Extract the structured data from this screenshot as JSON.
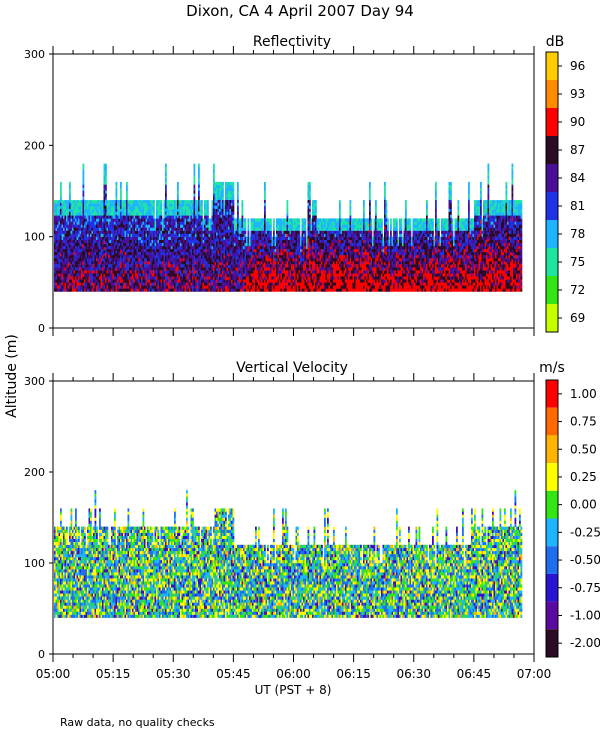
{
  "figure": {
    "title": "Dixon, CA   4 April 2007   Day   94",
    "y_label": "Altitude  (m)",
    "x_label": "UT   (PST + 8)",
    "footnote": "Raw data, no quality checks",
    "time_ticks": [
      "05:00",
      "05:15",
      "05:30",
      "05:45",
      "06:00",
      "06:15",
      "06:30",
      "06:45",
      "07:00"
    ]
  },
  "chart_data": [
    {
      "type": "heatmap",
      "title": "Reflectivity",
      "xlabel": "UT   (PST + 8)",
      "ylabel": "Altitude  (m)",
      "x_range_hours": [
        5.0,
        7.0
      ],
      "ylim": [
        0,
        300
      ],
      "y_ticks": [
        0,
        100,
        200,
        300
      ],
      "colorbar": {
        "unit": "dB",
        "labels": [
          "96",
          "93",
          "90",
          "87",
          "84",
          "81",
          "78",
          "75",
          "72",
          "69"
        ],
        "colors": [
          "#ffcc00",
          "#ff8c00",
          "#ff0000",
          "#2d0a24",
          "#4a0e98",
          "#1e32e6",
          "#1eb4ff",
          "#1ee6a0",
          "#32e614",
          "#c8ff00"
        ]
      },
      "echo": {
        "base_altitude_m": 40,
        "segments": [
          {
            "t_start": 5.0,
            "t_end": 5.667,
            "top_m": 140,
            "spike_top_m": 180
          },
          {
            "t_start": 5.667,
            "t_end": 5.75,
            "top_m": 160,
            "spike_top_m": 160
          },
          {
            "t_start": 5.75,
            "t_end": 6.75,
            "top_m": 120,
            "spike_top_m": 160
          },
          {
            "t_start": 6.75,
            "t_end": 6.95,
            "top_m": 140,
            "spike_top_m": 180
          }
        ]
      }
    },
    {
      "type": "heatmap",
      "title": "Vertical Velocity",
      "xlabel": "UT   (PST + 8)",
      "ylabel": "Altitude  (m)",
      "x_range_hours": [
        5.0,
        7.0
      ],
      "ylim": [
        0,
        300
      ],
      "y_ticks": [
        0,
        100,
        200,
        300
      ],
      "colorbar": {
        "unit": "m/s",
        "labels": [
          "1.00",
          "0.75",
          "0.50",
          "0.25",
          "0.00",
          "-0.25",
          "-0.50",
          "-0.75",
          "-1.00",
          "-2.00"
        ],
        "colors": [
          "#ff0000",
          "#ff6a00",
          "#ffb400",
          "#ffff00",
          "#32e614",
          "#1eb4ff",
          "#1e6ef0",
          "#2814d2",
          "#5a0aa0",
          "#2d0a24"
        ]
      },
      "echo": {
        "base_altitude_m": 40,
        "segments": [
          {
            "t_start": 5.0,
            "t_end": 5.667,
            "top_m": 140,
            "spike_top_m": 180
          },
          {
            "t_start": 5.667,
            "t_end": 5.75,
            "top_m": 160,
            "spike_top_m": 160
          },
          {
            "t_start": 5.75,
            "t_end": 6.75,
            "top_m": 120,
            "spike_top_m": 160
          },
          {
            "t_start": 6.75,
            "t_end": 6.95,
            "top_m": 140,
            "spike_top_m": 180
          }
        ]
      }
    }
  ]
}
